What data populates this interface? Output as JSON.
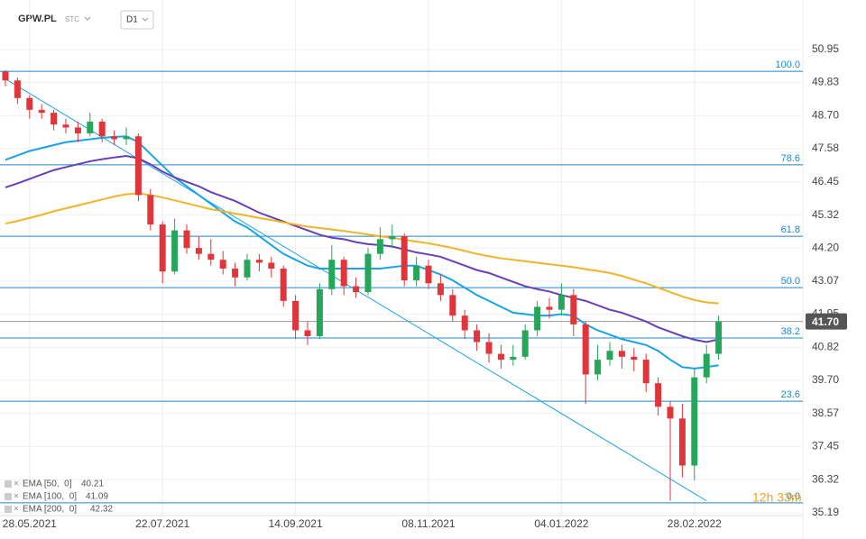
{
  "chart_data": {
    "type": "candlestick",
    "symbol": "GPW.PL",
    "market": "STC",
    "interval": "D1",
    "countdown": "12h 33m",
    "categories": [
      null,
      null,
      "28.05.2021",
      null,
      null,
      null,
      null,
      null,
      null,
      null,
      null,
      null,
      null,
      "22.07.2021",
      null,
      null,
      null,
      null,
      null,
      null,
      null,
      null,
      null,
      null,
      "14.09.2021",
      null,
      null,
      null,
      null,
      null,
      null,
      null,
      null,
      null,
      null,
      "08.11.2021",
      null,
      null,
      null,
      null,
      null,
      null,
      null,
      null,
      null,
      null,
      "04.01.2022",
      null,
      null,
      null,
      null,
      null,
      null,
      null,
      null,
      null,
      null,
      "28.02.2022",
      null,
      null
    ],
    "candles": [
      [
        50.2,
        50.25,
        49.7,
        49.9
      ],
      [
        49.9,
        50.0,
        49.1,
        49.3
      ],
      [
        49.3,
        49.4,
        48.6,
        48.9
      ],
      [
        48.9,
        49.1,
        48.6,
        48.8
      ],
      [
        48.8,
        48.9,
        48.2,
        48.4
      ],
      [
        48.4,
        48.6,
        48.1,
        48.3
      ],
      [
        48.3,
        48.5,
        47.8,
        48.1
      ],
      [
        48.1,
        48.8,
        48.0,
        48.5
      ],
      [
        48.5,
        48.6,
        47.8,
        48.0
      ],
      [
        48.0,
        48.2,
        47.7,
        47.9
      ],
      [
        47.9,
        48.3,
        47.7,
        48.0
      ],
      [
        48.0,
        48.1,
        45.8,
        46.0
      ],
      [
        46.0,
        46.2,
        44.8,
        45.0
      ],
      [
        45.0,
        45.1,
        43.0,
        43.4
      ],
      [
        43.4,
        45.2,
        43.3,
        44.8
      ],
      [
        44.8,
        45.0,
        44.0,
        44.2
      ],
      [
        44.2,
        44.6,
        43.8,
        44.0
      ],
      [
        44.0,
        44.5,
        43.6,
        43.8
      ],
      [
        43.8,
        44.1,
        43.3,
        43.5
      ],
      [
        43.5,
        43.7,
        42.9,
        43.2
      ],
      [
        43.2,
        44.0,
        43.1,
        43.8
      ],
      [
        43.8,
        44.0,
        43.4,
        43.7
      ],
      [
        43.7,
        43.9,
        43.2,
        43.5
      ],
      [
        43.5,
        43.6,
        42.2,
        42.4
      ],
      [
        42.4,
        42.6,
        41.1,
        41.4
      ],
      [
        41.4,
        41.7,
        40.9,
        41.2
      ],
      [
        41.2,
        43.0,
        41.1,
        42.8
      ],
      [
        42.8,
        44.3,
        42.6,
        43.8
      ],
      [
        43.8,
        43.9,
        42.6,
        42.9
      ],
      [
        42.9,
        43.2,
        42.5,
        42.7
      ],
      [
        42.7,
        44.2,
        42.6,
        44.0
      ],
      [
        44.0,
        44.9,
        43.8,
        44.5
      ],
      [
        44.5,
        45.0,
        44.2,
        44.6
      ],
      [
        44.6,
        44.7,
        42.9,
        43.1
      ],
      [
        43.1,
        43.9,
        42.9,
        43.6
      ],
      [
        43.6,
        43.8,
        42.8,
        43.0
      ],
      [
        43.0,
        43.3,
        42.4,
        42.6
      ],
      [
        42.6,
        42.8,
        41.7,
        41.9
      ],
      [
        41.9,
        42.1,
        41.1,
        41.4
      ],
      [
        41.4,
        41.6,
        40.7,
        41.0
      ],
      [
        41.0,
        41.3,
        40.3,
        40.6
      ],
      [
        40.6,
        40.9,
        40.1,
        40.4
      ],
      [
        40.4,
        40.9,
        40.2,
        40.5
      ],
      [
        40.5,
        41.6,
        40.4,
        41.4
      ],
      [
        41.4,
        42.4,
        41.2,
        42.2
      ],
      [
        42.2,
        42.5,
        41.8,
        42.1
      ],
      [
        42.1,
        43.0,
        41.9,
        42.6
      ],
      [
        42.6,
        42.8,
        41.2,
        41.6
      ],
      [
        41.6,
        41.7,
        38.9,
        39.9
      ],
      [
        39.9,
        40.9,
        39.7,
        40.4
      ],
      [
        40.4,
        41.0,
        40.2,
        40.7
      ],
      [
        40.7,
        40.9,
        40.1,
        40.5
      ],
      [
        40.5,
        40.8,
        40.0,
        40.4
      ],
      [
        40.4,
        40.6,
        39.3,
        39.6
      ],
      [
        39.6,
        39.8,
        38.5,
        38.8
      ],
      [
        38.8,
        39.0,
        35.6,
        38.4
      ],
      [
        38.4,
        38.9,
        36.4,
        36.8
      ],
      [
        36.8,
        40.1,
        36.3,
        39.8
      ],
      [
        39.8,
        40.9,
        39.6,
        40.6
      ],
      [
        40.6,
        41.9,
        40.4,
        41.7
      ]
    ],
    "up_color": "#26a65b",
    "down_color": "#e0363b",
    "series": [
      {
        "name": "EMA [50,  0]",
        "last_value": 40.21,
        "color": "#1aa3e8",
        "values": [
          47.2,
          47.35,
          47.5,
          47.6,
          47.7,
          47.8,
          47.85,
          47.9,
          47.95,
          47.98,
          48.0,
          47.8,
          47.4,
          47.0,
          46.6,
          46.3,
          46.0,
          45.7,
          45.4,
          45.1,
          44.9,
          44.6,
          44.3,
          44.0,
          43.8,
          43.6,
          43.5,
          43.5,
          43.5,
          43.5,
          43.5,
          43.5,
          43.55,
          43.6,
          43.6,
          43.45,
          43.3,
          43.1,
          42.85,
          42.6,
          42.4,
          42.2,
          42.0,
          41.95,
          41.9,
          41.9,
          41.95,
          41.9,
          41.6,
          41.4,
          41.25,
          41.1,
          41.0,
          40.9,
          40.7,
          40.4,
          40.15,
          40.1,
          40.15,
          40.21
        ]
      },
      {
        "name": "EMA [100,  0]",
        "last_value": 41.09,
        "color": "#6a3fb5",
        "values": [
          46.26,
          46.4,
          46.55,
          46.7,
          46.85,
          46.95,
          47.05,
          47.15,
          47.22,
          47.28,
          47.33,
          47.25,
          47.05,
          46.8,
          46.6,
          46.45,
          46.3,
          46.1,
          45.95,
          45.8,
          45.6,
          45.4,
          45.25,
          45.1,
          44.95,
          44.8,
          44.65,
          44.55,
          44.5,
          44.4,
          44.33,
          44.3,
          44.25,
          44.15,
          44.05,
          43.98,
          43.9,
          43.75,
          43.6,
          43.45,
          43.35,
          43.2,
          43.05,
          42.9,
          42.8,
          42.72,
          42.6,
          42.5,
          42.4,
          42.25,
          42.1,
          42.0,
          41.85,
          41.7,
          41.5,
          41.35,
          41.2,
          41.08,
          41.0,
          41.09
        ]
      },
      {
        "name": "EMA [200,  0]",
        "last_value": 42.32,
        "color": "#f0b429",
        "values": [
          45.03,
          45.12,
          45.22,
          45.33,
          45.45,
          45.55,
          45.65,
          45.75,
          45.85,
          45.95,
          46.03,
          46.06,
          46.0,
          45.92,
          45.82,
          45.72,
          45.62,
          45.52,
          45.45,
          45.37,
          45.3,
          45.22,
          45.15,
          45.07,
          45.0,
          44.93,
          44.88,
          44.83,
          44.78,
          44.72,
          44.66,
          44.6,
          44.55,
          44.48,
          44.42,
          44.36,
          44.28,
          44.2,
          44.1,
          44.0,
          43.92,
          43.85,
          43.8,
          43.75,
          43.7,
          43.65,
          43.6,
          43.55,
          43.48,
          43.42,
          43.35,
          43.25,
          43.12,
          43.0,
          42.85,
          42.7,
          42.55,
          42.43,
          42.35,
          42.32
        ]
      }
    ],
    "trendline": {
      "color": "#1aa3e8",
      "start": [
        0,
        49.95
      ],
      "end": [
        58,
        35.6
      ]
    },
    "fib_color": "#1e88c8",
    "fib_levels": [
      {
        "label": "100.0",
        "price": 50.21
      },
      {
        "label": "78.6",
        "price": 47.03
      },
      {
        "label": "61.8",
        "price": 44.6
      },
      {
        "label": "50.0",
        "price": 42.85
      },
      {
        "label": "38.2",
        "price": 41.14
      },
      {
        "label": "23.6",
        "price": 38.99
      },
      {
        "label": "0.0",
        "price": 35.53
      }
    ],
    "current_price": {
      "value": 41.7,
      "label": "41.70"
    },
    "ylim": [
      35.19,
      50.95
    ],
    "yticks": [
      {
        "value": 50.95,
        "label": "50.95"
      },
      {
        "value": 49.83,
        "label": "49.83"
      },
      {
        "value": 48.7,
        "label": "48.70"
      },
      {
        "value": 47.58,
        "label": "47.58"
      },
      {
        "value": 46.45,
        "label": "46.45"
      },
      {
        "value": 45.32,
        "label": "45.32"
      },
      {
        "value": 44.2,
        "label": "44.20"
      },
      {
        "value": 43.07,
        "label": "43.07"
      },
      {
        "value": 41.95,
        "label": "41.95"
      },
      {
        "value": 40.82,
        "label": "40.82"
      },
      {
        "value": 39.7,
        "label": "39.70"
      },
      {
        "value": 38.57,
        "label": "38.57"
      },
      {
        "value": 37.45,
        "label": "37.45"
      },
      {
        "value": 36.32,
        "label": "36.32"
      },
      {
        "value": 35.19,
        "label": "35.19"
      }
    ]
  }
}
